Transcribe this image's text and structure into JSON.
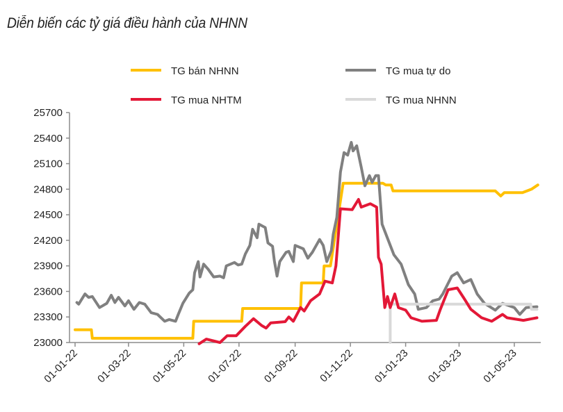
{
  "chart_data": {
    "type": "line",
    "title": "Diễn biến các tỷ giá điều hành của NHNN",
    "xlabel": "",
    "ylabel": "",
    "ylim": [
      23000,
      25700
    ],
    "yticks": [
      23000,
      23300,
      23600,
      23900,
      24200,
      24500,
      24800,
      25100,
      25400,
      25700
    ],
    "xlim": [
      "2022-01-01",
      "2023-05-28"
    ],
    "xticks": [
      {
        "date": "2022-01-01",
        "label": "01-01-22"
      },
      {
        "date": "2022-03-01",
        "label": "01-03-22"
      },
      {
        "date": "2022-05-01",
        "label": "01-05-22"
      },
      {
        "date": "2022-07-01",
        "label": "01-07-22"
      },
      {
        "date": "2022-09-01",
        "label": "01-09-22"
      },
      {
        "date": "2022-11-01",
        "label": "01-11-22"
      },
      {
        "date": "2023-01-01",
        "label": "01-01-23"
      },
      {
        "date": "2023-03-01",
        "label": "01-03-23"
      },
      {
        "date": "2023-05-01",
        "label": "01-05-23"
      }
    ],
    "grid": false,
    "legend_position": "top",
    "series": [
      {
        "name": "TG bán NHNN",
        "color": "#FFC000",
        "points": [
          [
            "2022-01-01",
            23150
          ],
          [
            "2022-01-19",
            23150
          ],
          [
            "2022-01-20",
            23050
          ],
          [
            "2022-05-11",
            23050
          ],
          [
            "2022-05-12",
            23250
          ],
          [
            "2022-07-04",
            23250
          ],
          [
            "2022-07-05",
            23400
          ],
          [
            "2022-09-07",
            23400
          ],
          [
            "2022-09-08",
            23700
          ],
          [
            "2022-10-02",
            23700
          ],
          [
            "2022-10-03",
            23900
          ],
          [
            "2022-10-10",
            23900
          ],
          [
            "2022-10-24",
            24870
          ],
          [
            "2022-12-07",
            24870
          ],
          [
            "2022-12-10",
            24850
          ],
          [
            "2022-12-16",
            24850
          ],
          [
            "2022-12-18",
            24780
          ],
          [
            "2023-04-10",
            24780
          ],
          [
            "2023-04-16",
            24720
          ],
          [
            "2023-04-20",
            24760
          ],
          [
            "2023-05-10",
            24760
          ],
          [
            "2023-05-20",
            24800
          ],
          [
            "2023-05-27",
            24850
          ]
        ]
      },
      {
        "name": "TG mua tự do",
        "color": "#808080",
        "points": [
          [
            "2022-01-03",
            23470
          ],
          [
            "2022-01-05",
            23450
          ],
          [
            "2022-01-12",
            23570
          ],
          [
            "2022-01-16",
            23530
          ],
          [
            "2022-01-20",
            23540
          ],
          [
            "2022-01-28",
            23410
          ],
          [
            "2022-02-05",
            23460
          ],
          [
            "2022-02-10",
            23555
          ],
          [
            "2022-02-14",
            23470
          ],
          [
            "2022-02-18",
            23530
          ],
          [
            "2022-02-25",
            23430
          ],
          [
            "2022-03-01",
            23490
          ],
          [
            "2022-03-07",
            23390
          ],
          [
            "2022-03-13",
            23470
          ],
          [
            "2022-03-19",
            23450
          ],
          [
            "2022-03-26",
            23350
          ],
          [
            "2022-04-02",
            23330
          ],
          [
            "2022-04-10",
            23250
          ],
          [
            "2022-04-15",
            23270
          ],
          [
            "2022-04-22",
            23250
          ],
          [
            "2022-04-25",
            23330
          ],
          [
            "2022-04-30",
            23460
          ],
          [
            "2022-05-07",
            23580
          ],
          [
            "2022-05-11",
            23620
          ],
          [
            "2022-05-13",
            23820
          ],
          [
            "2022-05-17",
            23950
          ],
          [
            "2022-05-19",
            23770
          ],
          [
            "2022-05-23",
            23920
          ],
          [
            "2022-05-28",
            23860
          ],
          [
            "2022-06-03",
            23770
          ],
          [
            "2022-06-10",
            23780
          ],
          [
            "2022-06-14",
            23760
          ],
          [
            "2022-06-17",
            23900
          ],
          [
            "2022-06-26",
            23940
          ],
          [
            "2022-06-30",
            23910
          ],
          [
            "2022-07-04",
            23920
          ],
          [
            "2022-07-08",
            24040
          ],
          [
            "2022-07-13",
            24140
          ],
          [
            "2022-07-16",
            24330
          ],
          [
            "2022-07-21",
            24230
          ],
          [
            "2022-07-23",
            24390
          ],
          [
            "2022-07-30",
            24350
          ],
          [
            "2022-08-02",
            24170
          ],
          [
            "2022-08-07",
            24130
          ],
          [
            "2022-08-09",
            23960
          ],
          [
            "2022-08-12",
            23780
          ],
          [
            "2022-08-15",
            23950
          ],
          [
            "2022-08-22",
            24060
          ],
          [
            "2022-08-25",
            24070
          ],
          [
            "2022-08-30",
            23950
          ],
          [
            "2022-09-01",
            24140
          ],
          [
            "2022-09-10",
            24100
          ],
          [
            "2022-09-15",
            23990
          ],
          [
            "2022-09-20",
            24060
          ],
          [
            "2022-09-28",
            24210
          ],
          [
            "2022-10-02",
            24140
          ],
          [
            "2022-10-06",
            23950
          ],
          [
            "2022-10-11",
            24080
          ],
          [
            "2022-10-13",
            24270
          ],
          [
            "2022-10-17",
            24470
          ],
          [
            "2022-10-21",
            25000
          ],
          [
            "2022-10-25",
            25230
          ],
          [
            "2022-10-29",
            25200
          ],
          [
            "2022-11-02",
            25350
          ],
          [
            "2022-11-04",
            25250
          ],
          [
            "2022-11-08",
            25310
          ],
          [
            "2022-11-13",
            25060
          ],
          [
            "2022-11-17",
            24840
          ],
          [
            "2022-11-22",
            24960
          ],
          [
            "2022-11-25",
            24880
          ],
          [
            "2022-11-29",
            24960
          ],
          [
            "2022-12-02",
            24960
          ],
          [
            "2022-12-06",
            24390
          ],
          [
            "2022-12-14",
            24170
          ],
          [
            "2022-12-19",
            24030
          ],
          [
            "2022-12-27",
            23920
          ],
          [
            "2023-01-04",
            23680
          ],
          [
            "2023-01-11",
            23570
          ],
          [
            "2023-01-15",
            23390
          ],
          [
            "2023-01-24",
            23410
          ],
          [
            "2023-01-31",
            23490
          ],
          [
            "2023-02-07",
            23510
          ],
          [
            "2023-02-11",
            23570
          ],
          [
            "2023-02-21",
            23780
          ],
          [
            "2023-02-27",
            23820
          ],
          [
            "2023-03-06",
            23700
          ],
          [
            "2023-03-14",
            23740
          ],
          [
            "2023-03-21",
            23570
          ],
          [
            "2023-03-29",
            23460
          ],
          [
            "2023-04-10",
            23380
          ],
          [
            "2023-04-18",
            23460
          ],
          [
            "2023-05-01",
            23410
          ],
          [
            "2023-05-07",
            23330
          ],
          [
            "2023-05-14",
            23410
          ],
          [
            "2023-05-26",
            23420
          ]
        ]
      },
      {
        "name": "TG mua NHTM",
        "color": "#E31837",
        "points": [
          [
            "2022-05-18",
            22985
          ],
          [
            "2022-05-26",
            23040
          ],
          [
            "2022-06-10",
            23000
          ],
          [
            "2022-06-18",
            23080
          ],
          [
            "2022-06-28",
            23080
          ],
          [
            "2022-07-08",
            23190
          ],
          [
            "2022-07-17",
            23280
          ],
          [
            "2022-07-26",
            23200
          ],
          [
            "2022-07-31",
            23170
          ],
          [
            "2022-08-05",
            23230
          ],
          [
            "2022-08-21",
            23245
          ],
          [
            "2022-08-25",
            23300
          ],
          [
            "2022-08-30",
            23250
          ],
          [
            "2022-09-07",
            23410
          ],
          [
            "2022-09-11",
            23370
          ],
          [
            "2022-09-18",
            23490
          ],
          [
            "2022-09-28",
            23570
          ],
          [
            "2022-10-04",
            23720
          ],
          [
            "2022-10-12",
            23700
          ],
          [
            "2022-10-16",
            23900
          ],
          [
            "2022-10-21",
            24570
          ],
          [
            "2022-11-03",
            24560
          ],
          [
            "2022-11-10",
            24680
          ],
          [
            "2022-11-13",
            24590
          ],
          [
            "2022-11-23",
            24630
          ],
          [
            "2022-11-30",
            24590
          ],
          [
            "2022-12-02",
            24000
          ],
          [
            "2022-12-05",
            23920
          ],
          [
            "2022-12-09",
            23410
          ],
          [
            "2022-12-12",
            23540
          ],
          [
            "2022-12-15",
            23410
          ],
          [
            "2022-12-20",
            23570
          ],
          [
            "2022-12-24",
            23410
          ],
          [
            "2023-01-01",
            23380
          ],
          [
            "2023-01-07",
            23290
          ],
          [
            "2023-01-19",
            23250
          ],
          [
            "2023-02-04",
            23260
          ],
          [
            "2023-02-08",
            23380
          ],
          [
            "2023-02-17",
            23620
          ],
          [
            "2023-02-27",
            23640
          ],
          [
            "2023-03-07",
            23510
          ],
          [
            "2023-03-14",
            23390
          ],
          [
            "2023-03-26",
            23290
          ],
          [
            "2023-04-06",
            23250
          ],
          [
            "2023-04-18",
            23330
          ],
          [
            "2023-04-23",
            23290
          ],
          [
            "2023-05-11",
            23260
          ],
          [
            "2023-05-26",
            23290
          ]
        ]
      },
      {
        "name": "TG mua NHNN",
        "color": "#D9D9D9",
        "points": [
          [
            "2022-12-15",
            23000
          ],
          [
            "2022-12-15",
            23450
          ],
          [
            "2023-05-19",
            23450
          ],
          [
            "2023-05-20",
            23390
          ],
          [
            "2023-05-26",
            23390
          ]
        ]
      }
    ]
  }
}
